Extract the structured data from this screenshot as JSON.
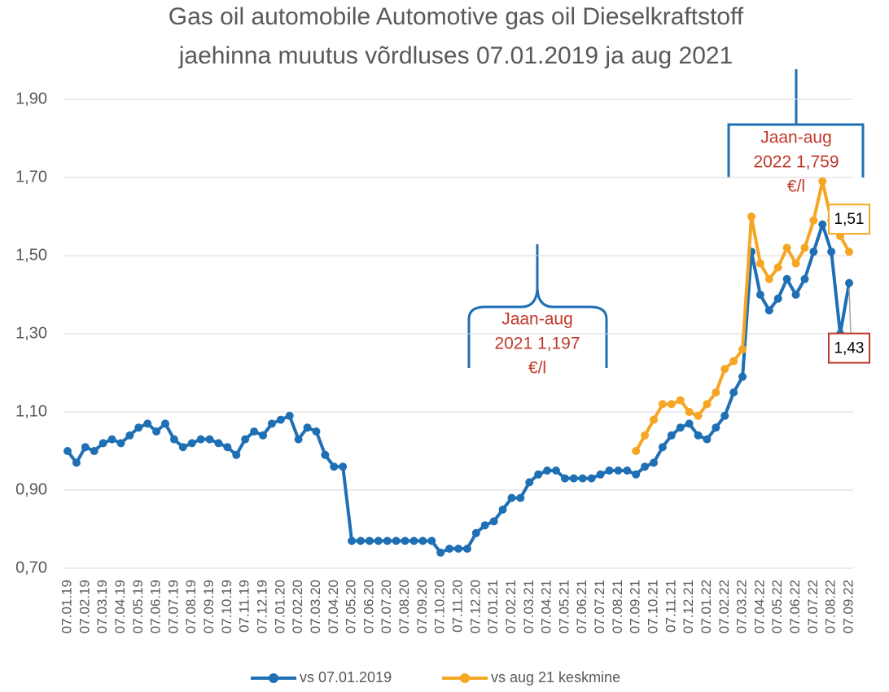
{
  "chart_data": {
    "type": "line",
    "title": [
      "Gas oil automobile Automotive gas oil Dieselkraftstoff",
      "jaehinna muutus võrdluses 07.01.2019 ja aug 2021"
    ],
    "categories": [
      "07.01.19",
      null,
      "07.02.19",
      null,
      "07.03.19",
      null,
      "07.04.19",
      null,
      "07.05.19",
      null,
      "07.06.19",
      null,
      "07.07.19",
      null,
      "07.08.19",
      null,
      "07.09.19",
      null,
      "07.10.19",
      null,
      "07.11.19",
      null,
      "07.12.19",
      null,
      "07.01.20",
      null,
      "07.02.20",
      null,
      "07.03.20",
      null,
      "07.04.20",
      null,
      "07.05.20",
      null,
      "07.06.20",
      null,
      "07.07.20",
      null,
      "07.08.20",
      null,
      "07.09.20",
      null,
      "07.10.20",
      null,
      "07.11.20",
      null,
      "07.12.20",
      null,
      "07.01.21",
      null,
      "07.02.21",
      null,
      "07.03.21",
      null,
      "07.04.21",
      null,
      "07.05.21",
      null,
      "07.06.21",
      null,
      "07.07.21",
      null,
      "07.08.21",
      null,
      "07.09.21",
      null,
      "07.10.21",
      null,
      "07.11.21",
      null,
      "07.12.21",
      null,
      "07.01.22",
      null,
      "07.02.22",
      null,
      "07.03.22",
      null,
      "07.04.22",
      null,
      "07.05.22",
      null,
      "07.06.22",
      null,
      "07.07.22",
      null,
      "07.08.22",
      null,
      "07.09.22"
    ],
    "series": [
      {
        "name": "vs 07.01.2019",
        "color": "#1f6fb5",
        "values": [
          1.0,
          0.97,
          1.01,
          1.0,
          1.02,
          1.03,
          1.02,
          1.04,
          1.06,
          1.07,
          1.05,
          1.07,
          1.03,
          1.01,
          1.02,
          1.03,
          1.03,
          1.02,
          1.01,
          0.99,
          1.03,
          1.05,
          1.04,
          1.07,
          1.08,
          1.09,
          1.03,
          1.06,
          1.05,
          0.99,
          0.96,
          0.96,
          0.77,
          0.77,
          0.77,
          0.77,
          0.77,
          0.77,
          0.77,
          0.77,
          0.77,
          0.77,
          0.74,
          0.75,
          0.75,
          0.75,
          0.79,
          0.81,
          0.82,
          0.85,
          0.88,
          0.88,
          0.92,
          0.94,
          0.95,
          0.95,
          0.93,
          0.93,
          0.93,
          0.93,
          0.94,
          0.95,
          0.95,
          0.95,
          0.94,
          0.96,
          0.97,
          1.01,
          1.04,
          1.06,
          1.07,
          1.04,
          1.03,
          1.06,
          1.09,
          1.15,
          1.19,
          1.51,
          1.4,
          1.36,
          1.39,
          1.44,
          1.4,
          1.44,
          1.51,
          1.58,
          1.51,
          1.3,
          1.43
        ],
        "value_labels": [
          null,
          null,
          null,
          null,
          null,
          null,
          null,
          null,
          null,
          null,
          null,
          null,
          null,
          null,
          null,
          null,
          null,
          null,
          null,
          null,
          null,
          null,
          null,
          null,
          null,
          null,
          null,
          null,
          null,
          null,
          null,
          null,
          null,
          null,
          null,
          null,
          null,
          null,
          null,
          null,
          null,
          null,
          null,
          null,
          null,
          null,
          null,
          null,
          null,
          null,
          null,
          null,
          null,
          null,
          null,
          null,
          null,
          null,
          null,
          null,
          null,
          null,
          null,
          null,
          null,
          null,
          null,
          null,
          null,
          null,
          null,
          null,
          null,
          null,
          null,
          null,
          null,
          null,
          null,
          null,
          null,
          null,
          null,
          null,
          null,
          null,
          null,
          null,
          "1,43"
        ]
      },
      {
        "name": "vs aug 21 keskmine",
        "color": "#f5a623",
        "values": [
          null,
          null,
          null,
          null,
          null,
          null,
          null,
          null,
          null,
          null,
          null,
          null,
          null,
          null,
          null,
          null,
          null,
          null,
          null,
          null,
          null,
          null,
          null,
          null,
          null,
          null,
          null,
          null,
          null,
          null,
          null,
          null,
          null,
          null,
          null,
          null,
          null,
          null,
          null,
          null,
          null,
          null,
          null,
          null,
          null,
          null,
          null,
          null,
          null,
          null,
          null,
          null,
          null,
          null,
          null,
          null,
          null,
          null,
          null,
          null,
          null,
          null,
          null,
          null,
          1.0,
          1.04,
          1.08,
          1.12,
          1.12,
          1.13,
          1.1,
          1.09,
          1.12,
          1.15,
          1.21,
          1.23,
          1.26,
          1.6,
          1.48,
          1.44,
          1.47,
          1.52,
          1.48,
          1.52,
          1.59,
          1.69,
          1.59,
          1.55,
          1.51
        ],
        "value_labels": [
          null,
          null,
          null,
          null,
          null,
          null,
          null,
          null,
          null,
          null,
          null,
          null,
          null,
          null,
          null,
          null,
          null,
          null,
          null,
          null,
          null,
          null,
          null,
          null,
          null,
          null,
          null,
          null,
          null,
          null,
          null,
          null,
          null,
          null,
          null,
          null,
          null,
          null,
          null,
          null,
          null,
          null,
          null,
          null,
          null,
          null,
          null,
          null,
          null,
          null,
          null,
          null,
          null,
          null,
          null,
          null,
          null,
          null,
          null,
          null,
          null,
          null,
          null,
          null,
          null,
          null,
          null,
          null,
          null,
          null,
          null,
          null,
          null,
          null,
          null,
          null,
          null,
          null,
          null,
          null,
          null,
          null,
          null,
          null,
          null,
          null,
          null,
          null,
          "1,51"
        ]
      }
    ],
    "ylim": [
      0.7,
      1.9
    ],
    "yticks": [
      {
        "value": 0.7,
        "label": "0,70"
      },
      {
        "value": 0.9,
        "label": "0,90"
      },
      {
        "value": 1.1,
        "label": "1,10"
      },
      {
        "value": 1.3,
        "label": "1,30"
      },
      {
        "value": 1.5,
        "label": "1,50"
      },
      {
        "value": 1.7,
        "label": "1,70"
      },
      {
        "value": 1.9,
        "label": "1,90"
      }
    ],
    "grid": true,
    "legend": "bottom",
    "annotations": [
      {
        "lines": [
          "Jaan-aug",
          "2021 1,197",
          "€/l"
        ]
      },
      {
        "lines": [
          "Jaan-aug",
          "2022 1,759",
          "€/l"
        ]
      }
    ]
  }
}
